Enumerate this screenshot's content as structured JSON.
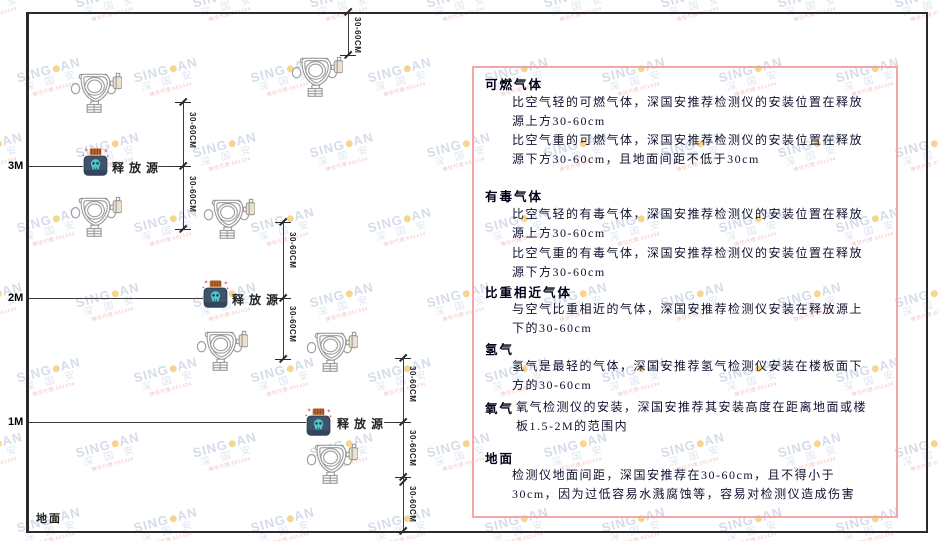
{
  "watermark": {
    "brand_left": "SING",
    "brand_right": "AN",
    "brand_cn": "深 国 安",
    "agent_line": "微信代理:661434"
  },
  "diagram": {
    "levels": [
      "3M",
      "2M",
      "1M"
    ],
    "ground_label": "地面",
    "release_source_label": "释放源",
    "dim_label": "30-60CM"
  },
  "panel": {
    "sections": [
      {
        "title": "可燃气体",
        "paragraphs": [
          "比空气轻的可燃气体，深国安推荐检测仪的安装位置在释放源上方30-60cm",
          "比空气重的可燃气体，深国安推荐检测仪的安装位置在释放源下方30-60cm，且地面间距不低于30cm"
        ]
      },
      {
        "title": "有毒气体",
        "paragraphs": [
          "比空气轻的有毒气体，深国安推荐检测仪的安装位置在释放源上方30-60cm",
          "比空气重的有毒气体，深国安推荐检测仪的安装位置在释放源下方30-60cm"
        ]
      },
      {
        "title": "比重相近气体",
        "paragraphs": [
          "与空气比重相近的气体，深国安推荐检测仪安装在释放源上下的30-60cm"
        ]
      },
      {
        "title": "氢气",
        "paragraphs": [
          "氢气是最轻的气体，深国安推荐氢气检测仪安装在楼板面下方的30-60cm"
        ]
      },
      {
        "title": "氧气",
        "paragraphs": [
          "氧气检测仪的安装，深国安推荐其安装高度在距离地面或楼板1.5-2M的范围内"
        ]
      },
      {
        "title": "地面",
        "paragraphs": [
          "检测仪地面间距，深国安推荐在30-60cm，且不得小于30cm，因为过低容易水溅腐蚀等，容易对检测仪造成伤害"
        ]
      }
    ]
  },
  "colors": {
    "panel_border": "#f2a6a6",
    "line": "#2a2a2a",
    "watermark_blue": "#b4c0d8",
    "watermark_dot": "#f2b136",
    "watermark_agent_red": "#e89090",
    "detector_stroke": "#9a9a9a",
    "detector_box_fill": "#ece2cc",
    "bottle_body": "#41536a",
    "bottle_cap": "#bf6b33",
    "skull_teal": "#4cc8cc",
    "sparkle_red": "#e2574b"
  }
}
